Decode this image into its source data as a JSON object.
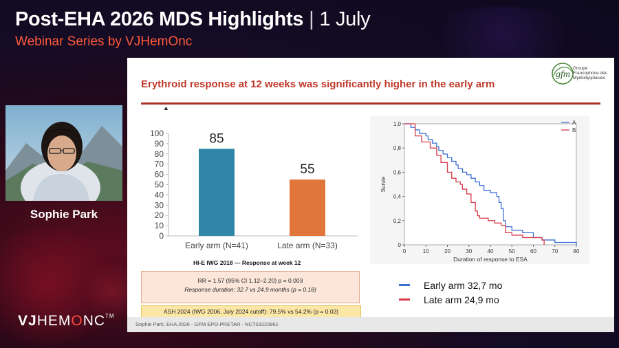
{
  "header": {
    "title": "Post-EHA 2026 MDS Highlights",
    "separator": "|",
    "date": "1 July",
    "subtitle": "Webinar Series by VJHemOnc"
  },
  "speaker": {
    "name": "Sophie Park"
  },
  "logo": {
    "prefix": "VJ",
    "text": "HEM",
    "o": "O",
    "suffix": "NC",
    "tm": "TM"
  },
  "slide": {
    "title": "Erythroid response at 12 weeks was significantly higher in the early arm",
    "org_logo": {
      "initials": "gfm",
      "lines": [
        "Groupe",
        "Francophone des",
        "Myélodysplasies"
      ]
    },
    "marker": "▲",
    "caption": "HI-E IWG 2018 — Response at week 12",
    "stat_line1": "RR = 1.57 (95% CI 1.12–2.20) p = 0.003",
    "stat_line2": "Response duration: 32.7 vs 24.9 months (p = 0.18)",
    "ash_line": "ASH 2024 (IWG 2006, July 2024 cutoff): 79.5% vs 54.2% (p = 0.03)",
    "footer": "Sophie Park, EHA 2026 - GFM EPO-PRETAR - NCT03223961",
    "legend": [
      {
        "label": "Early arm 32,7 mo",
        "color": "#3b6fd4"
      },
      {
        "label": "Late arm 24,9 mo",
        "color": "#d8394a"
      }
    ]
  },
  "chart_data": [
    {
      "type": "bar",
      "categories": [
        "Early arm (N=41)",
        "Late arm (N=33)"
      ],
      "values": [
        85,
        55
      ],
      "colors": [
        "#2f86a6",
        "#e0763a"
      ],
      "ylim": [
        0,
        100
      ],
      "yticks": [
        0,
        10,
        20,
        30,
        40,
        50,
        60,
        70,
        80,
        90,
        100
      ]
    },
    {
      "type": "line",
      "xlabel": "Duration  of response to ESA",
      "ylabel": "Survie",
      "xlim": [
        0,
        80
      ],
      "ylim": [
        0,
        1
      ],
      "xticks": [
        "0",
        "10",
        "20",
        "30",
        "40",
        "50",
        "60",
        "70",
        "80"
      ],
      "yticks": [
        "0",
        "0,2",
        "0,4",
        "0,6",
        "0,8",
        "1,0"
      ],
      "legend_position": "top-right",
      "series": [
        {
          "name": "A",
          "color": "#3b6fd4",
          "points": [
            [
              0,
              1.0
            ],
            [
              2,
              1.0
            ],
            [
              3,
              0.97
            ],
            [
              5,
              0.95
            ],
            [
              7,
              0.92
            ],
            [
              10,
              0.9
            ],
            [
              11,
              0.87
            ],
            [
              13,
              0.84
            ],
            [
              15,
              0.81
            ],
            [
              16,
              0.78
            ],
            [
              18,
              0.75
            ],
            [
              20,
              0.72
            ],
            [
              22,
              0.69
            ],
            [
              24,
              0.66
            ],
            [
              25,
              0.63
            ],
            [
              27,
              0.6
            ],
            [
              29,
              0.58
            ],
            [
              31,
              0.55
            ],
            [
              33,
              0.52
            ],
            [
              35,
              0.49
            ],
            [
              37,
              0.45
            ],
            [
              40,
              0.43
            ],
            [
              43,
              0.4
            ],
            [
              44,
              0.35
            ],
            [
              45,
              0.3
            ],
            [
              46,
              0.2
            ],
            [
              47,
              0.15
            ],
            [
              50,
              0.12
            ],
            [
              55,
              0.1
            ],
            [
              60,
              0.06
            ],
            [
              64,
              0.04
            ],
            [
              70,
              0.02
            ],
            [
              80,
              0.0
            ]
          ]
        },
        {
          "name": "B",
          "color": "#d8394a",
          "points": [
            [
              0,
              1.0
            ],
            [
              5,
              0.9
            ],
            [
              8,
              0.85
            ],
            [
              12,
              0.8
            ],
            [
              15,
              0.74
            ],
            [
              17,
              0.68
            ],
            [
              20,
              0.6
            ],
            [
              22,
              0.55
            ],
            [
              24,
              0.52
            ],
            [
              26,
              0.5
            ],
            [
              27,
              0.46
            ],
            [
              29,
              0.42
            ],
            [
              31,
              0.35
            ],
            [
              33,
              0.28
            ],
            [
              34,
              0.24
            ],
            [
              35,
              0.22
            ],
            [
              39,
              0.2
            ],
            [
              42,
              0.18
            ],
            [
              45,
              0.16
            ],
            [
              47,
              0.1
            ],
            [
              50,
              0.08
            ],
            [
              55,
              0.06
            ],
            [
              64,
              0.04
            ],
            [
              65,
              0.0
            ]
          ]
        }
      ]
    }
  ]
}
